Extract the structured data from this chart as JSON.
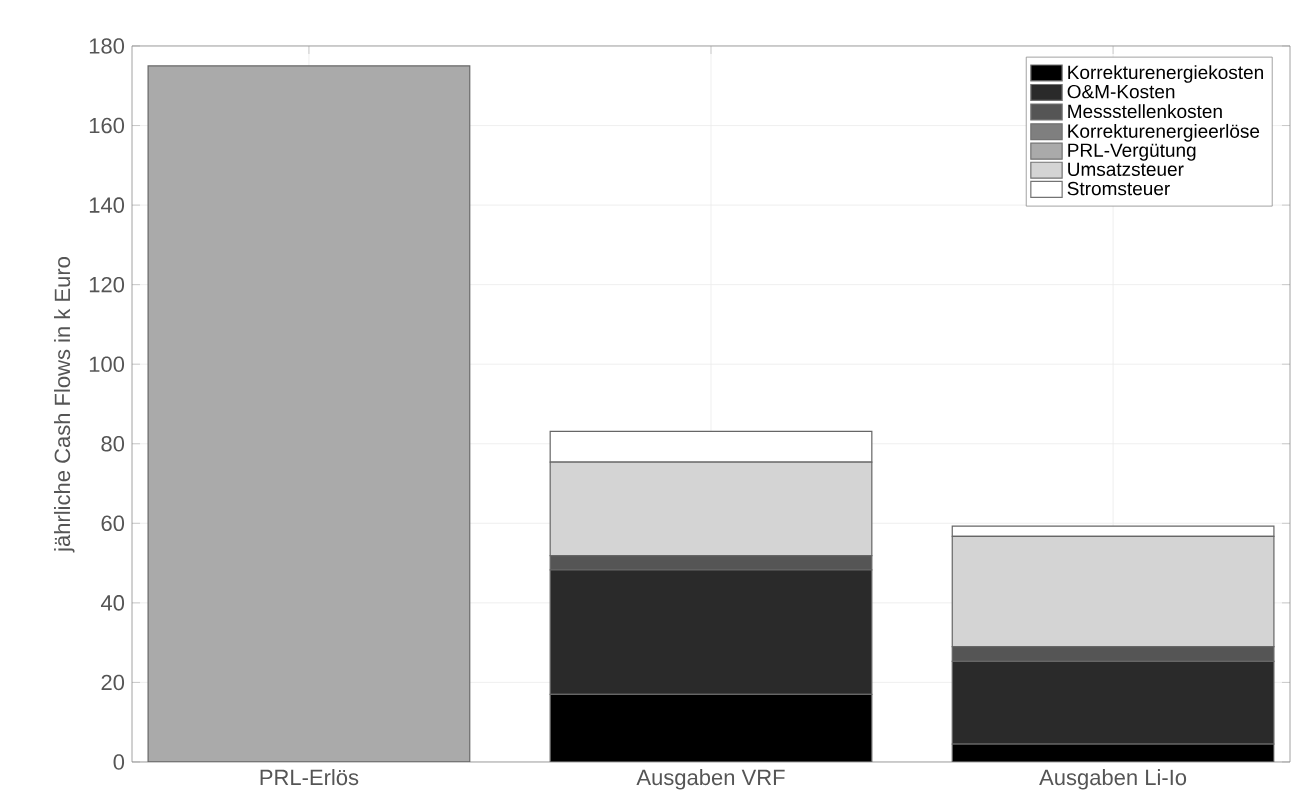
{
  "chart_data": {
    "type": "bar",
    "stacked": true,
    "ylabel": "jährliche Cash Flows in k Euro",
    "categories": [
      "PRL-Erlös",
      "Ausgaben VRF",
      "Ausgaben Li-Io"
    ],
    "series": [
      {
        "name": "Korrekturenergiekosten",
        "color": "#000000",
        "values": [
          0,
          17,
          4.5
        ]
      },
      {
        "name": "O&M-Kosten",
        "color": "#2a2a2a",
        "values": [
          0,
          31.3,
          20.8
        ]
      },
      {
        "name": "Messstellenkosten",
        "color": "#555555",
        "values": [
          0,
          3.6,
          3.7
        ]
      },
      {
        "name": "Korrekturenergieerlöse",
        "color": "#7f7f7f",
        "values": [
          0,
          0,
          0
        ]
      },
      {
        "name": "PRL-Vergütung",
        "color": "#aaaaaa",
        "values": [
          175,
          0,
          0
        ]
      },
      {
        "name": "Umsatzsteuer",
        "color": "#d4d4d4",
        "values": [
          0,
          23.5,
          27.7
        ]
      },
      {
        "name": "Stromsteuer",
        "color": "#ffffff",
        "values": [
          0,
          7.7,
          2.6
        ]
      }
    ],
    "ylim": [
      0,
      180
    ],
    "yticks": [
      0,
      20,
      40,
      60,
      80,
      100,
      120,
      140,
      160,
      180
    ],
    "grid": true,
    "legend": "top right"
  }
}
